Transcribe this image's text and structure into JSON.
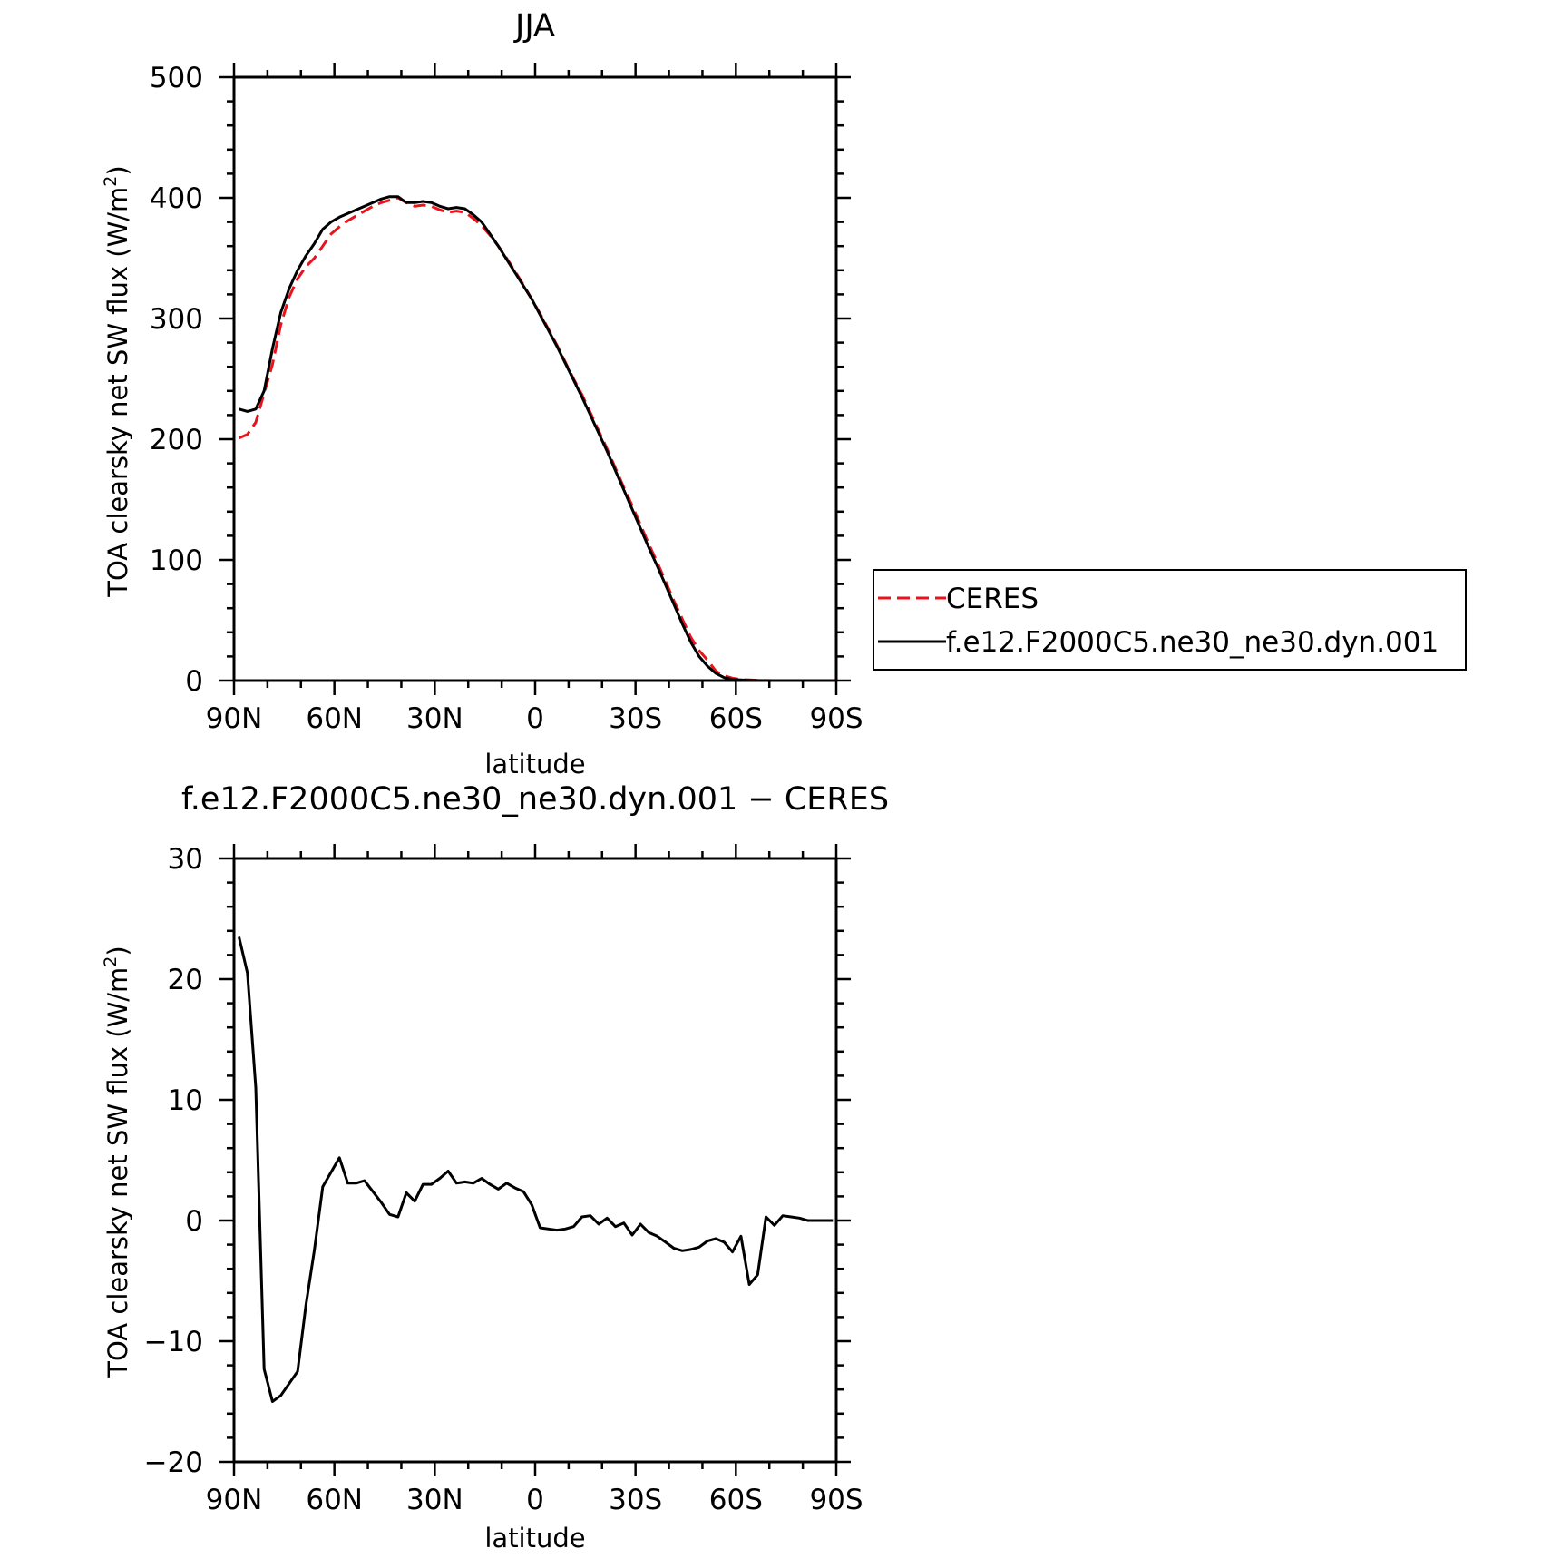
{
  "chart_data": [
    {
      "type": "line",
      "title": "JJA",
      "xlabel": "latitude",
      "ylabel": "TOA clearsky net SW flux (W/m",
      "ylabel_sup": "2",
      "ylabel_tail": ")",
      "xlim": [
        90,
        -90
      ],
      "ylim": [
        0,
        500
      ],
      "x_ticks": [
        {
          "value": 90,
          "label": "90N"
        },
        {
          "value": 60,
          "label": "60N"
        },
        {
          "value": 30,
          "label": "30N"
        },
        {
          "value": 0,
          "label": "0"
        },
        {
          "value": -30,
          "label": "30S"
        },
        {
          "value": -60,
          "label": "60S"
        },
        {
          "value": -90,
          "label": "90S"
        }
      ],
      "y_ticks": [
        0,
        100,
        200,
        300,
        400,
        500
      ],
      "y_tick_labels": [
        "0",
        "100",
        "200",
        "300",
        "400",
        "500"
      ],
      "legend": {
        "placement": "right",
        "entries": [
          {
            "label": "CERES",
            "color": "#e8141c",
            "style": "dashed"
          },
          {
            "label": "f.e12.F2000C5.ne30_ne30.dyn.001",
            "color": "#000000",
            "style": "solid"
          }
        ]
      },
      "series": [
        {
          "name": "CERES",
          "color": "#e8141c",
          "style": "dashed",
          "x": [
            88.5,
            86,
            83.5,
            81,
            78.5,
            76,
            73.5,
            71,
            68.5,
            66,
            63.5,
            61,
            58.5,
            56,
            53.5,
            51,
            48.5,
            46,
            43.5,
            41,
            38.5,
            36,
            33.5,
            31,
            28.5,
            26,
            23.5,
            21,
            18.5,
            16,
            13.5,
            11,
            8.5,
            6,
            3.5,
            1,
            -1.5,
            -4,
            -6.5,
            -9,
            -11.5,
            -14,
            -16.5,
            -19,
            -21.5,
            -24,
            -26.5,
            -29,
            -31.5,
            -34,
            -36.5,
            -39,
            -41.5,
            -44,
            -46.5,
            -49,
            -51.5,
            -54,
            -56.5,
            -59,
            -61.5,
            -64,
            -66.5,
            -69,
            -71.5,
            -74,
            -76.5,
            -79,
            -81.5,
            -84,
            -86.5,
            -89
          ],
          "values": [
            201,
            204,
            214,
            238,
            262,
            295,
            318,
            333,
            343,
            350,
            360,
            370,
            376,
            381,
            385,
            389,
            393,
            396,
            398,
            400,
            396,
            393,
            394,
            393,
            390,
            388,
            389,
            388,
            383,
            377,
            369,
            360,
            350,
            339,
            328,
            316,
            304,
            291,
            278,
            264,
            250,
            237,
            222,
            207,
            192,
            176,
            160,
            145,
            129,
            113,
            98,
            82,
            66,
            51,
            36,
            25,
            17,
            8,
            4,
            2,
            1,
            0.5,
            0.2,
            0.1,
            0,
            0,
            0,
            0,
            0,
            0,
            0,
            0
          ]
        },
        {
          "name": "f.e12.F2000C5.ne30_ne30.dyn.001",
          "color": "#000000",
          "style": "solid",
          "x": [
            88.5,
            86,
            83.5,
            81,
            78.5,
            76,
            73.5,
            71,
            68.5,
            66,
            63.5,
            61,
            58.5,
            56,
            53.5,
            51,
            48.5,
            46,
            43.5,
            41,
            38.5,
            36,
            33.5,
            31,
            28.5,
            26,
            23.5,
            21,
            18.5,
            16,
            13.5,
            11,
            8.5,
            6,
            3.5,
            1,
            -1.5,
            -4,
            -6.5,
            -9,
            -11.5,
            -14,
            -16.5,
            -19,
            -21.5,
            -24,
            -26.5,
            -29,
            -31.5,
            -34,
            -36.5,
            -39,
            -41.5,
            -44,
            -46.5,
            -49,
            -51.5,
            -54,
            -56.5,
            -59,
            -61.5,
            -64,
            -66.5,
            -69,
            -71.5,
            -74,
            -76.5,
            -79,
            -81.5,
            -84,
            -86.5,
            -89
          ],
          "values": [
            225,
            223,
            225,
            240,
            275,
            305,
            325,
            340,
            352,
            362,
            374,
            380,
            384,
            387,
            390,
            393,
            396,
            399,
            401,
            401,
            396,
            396,
            397,
            396,
            393,
            391,
            392,
            391,
            386,
            380,
            370,
            360,
            349,
            338,
            327,
            316,
            303,
            290,
            277,
            263,
            249,
            235,
            220,
            205,
            190,
            174,
            158,
            142,
            126,
            110,
            95,
            79,
            63,
            47,
            32,
            20,
            12,
            6,
            2.5,
            1,
            0.5,
            0.2,
            0.1,
            0,
            0,
            0,
            0,
            0,
            0,
            0,
            0,
            0
          ]
        }
      ]
    },
    {
      "type": "line",
      "title": "f.e12.F2000C5.ne30_ne30.dyn.001 − CERES",
      "xlabel": "latitude",
      "ylabel": "TOA clearsky net SW flux (W/m",
      "ylabel_sup": "2",
      "ylabel_tail": ")",
      "xlim": [
        90,
        -90
      ],
      "ylim": [
        -20,
        30
      ],
      "x_ticks": [
        {
          "value": 90,
          "label": "90N"
        },
        {
          "value": 60,
          "label": "60N"
        },
        {
          "value": 30,
          "label": "30N"
        },
        {
          "value": 0,
          "label": "0"
        },
        {
          "value": -30,
          "label": "30S"
        },
        {
          "value": -60,
          "label": "60S"
        },
        {
          "value": -90,
          "label": "90S"
        }
      ],
      "y_ticks": [
        -20,
        -10,
        0,
        10,
        20,
        30
      ],
      "y_tick_labels": [
        "−20",
        "−10",
        "0",
        "10",
        "20",
        "30"
      ],
      "series": [
        {
          "color": "#000000",
          "style": "solid",
          "x": [
            88.5,
            86,
            83.5,
            81,
            78.5,
            76,
            73.5,
            71,
            68.5,
            66,
            63.5,
            61,
            58.5,
            56,
            53.5,
            51,
            48.5,
            46,
            43.5,
            41,
            38.5,
            36,
            33.5,
            31,
            28.5,
            26,
            23.5,
            21,
            18.5,
            16,
            13.5,
            11,
            8.5,
            6,
            3.5,
            1,
            -1.5,
            -4,
            -6.5,
            -9,
            -11.5,
            -14,
            -16.5,
            -19,
            -21.5,
            -24,
            -26.5,
            -29,
            -31.5,
            -34,
            -36.5,
            -39,
            -41.5,
            -44,
            -46.5,
            -49,
            -51.5,
            -54,
            -56.5,
            -59,
            -61.5,
            -64,
            -66.5,
            -69,
            -71.5,
            -74,
            -76.5,
            -79,
            -81.5,
            -84,
            -86.5,
            -89
          ],
          "values": [
            23.5,
            20.5,
            11,
            -12.3,
            -15,
            -14.5,
            -13.5,
            -12.5,
            -7,
            -2.5,
            2.8,
            4,
            5.2,
            3.1,
            3.1,
            3.3,
            2.4,
            1.5,
            0.5,
            0.3,
            2.3,
            1.6,
            3.0,
            3.0,
            3.5,
            4.1,
            3.1,
            3.2,
            3.1,
            3.5,
            3.0,
            2.6,
            3.1,
            2.7,
            2.4,
            1.3,
            -0.6,
            -0.7,
            -0.8,
            -0.7,
            -0.5,
            0.3,
            0.4,
            -0.3,
            0.2,
            -0.5,
            -0.2,
            -1.2,
            -0.3,
            -1.0,
            -1.3,
            -1.8,
            -2.3,
            -2.5,
            -2.4,
            -2.2,
            -1.7,
            -1.5,
            -1.8,
            -2.6,
            -1.3,
            -5.3,
            -4.5,
            0.3,
            -0.4,
            0.4,
            0.3,
            0.2,
            0.0,
            0.0,
            0.0,
            0.0
          ]
        }
      ]
    }
  ]
}
